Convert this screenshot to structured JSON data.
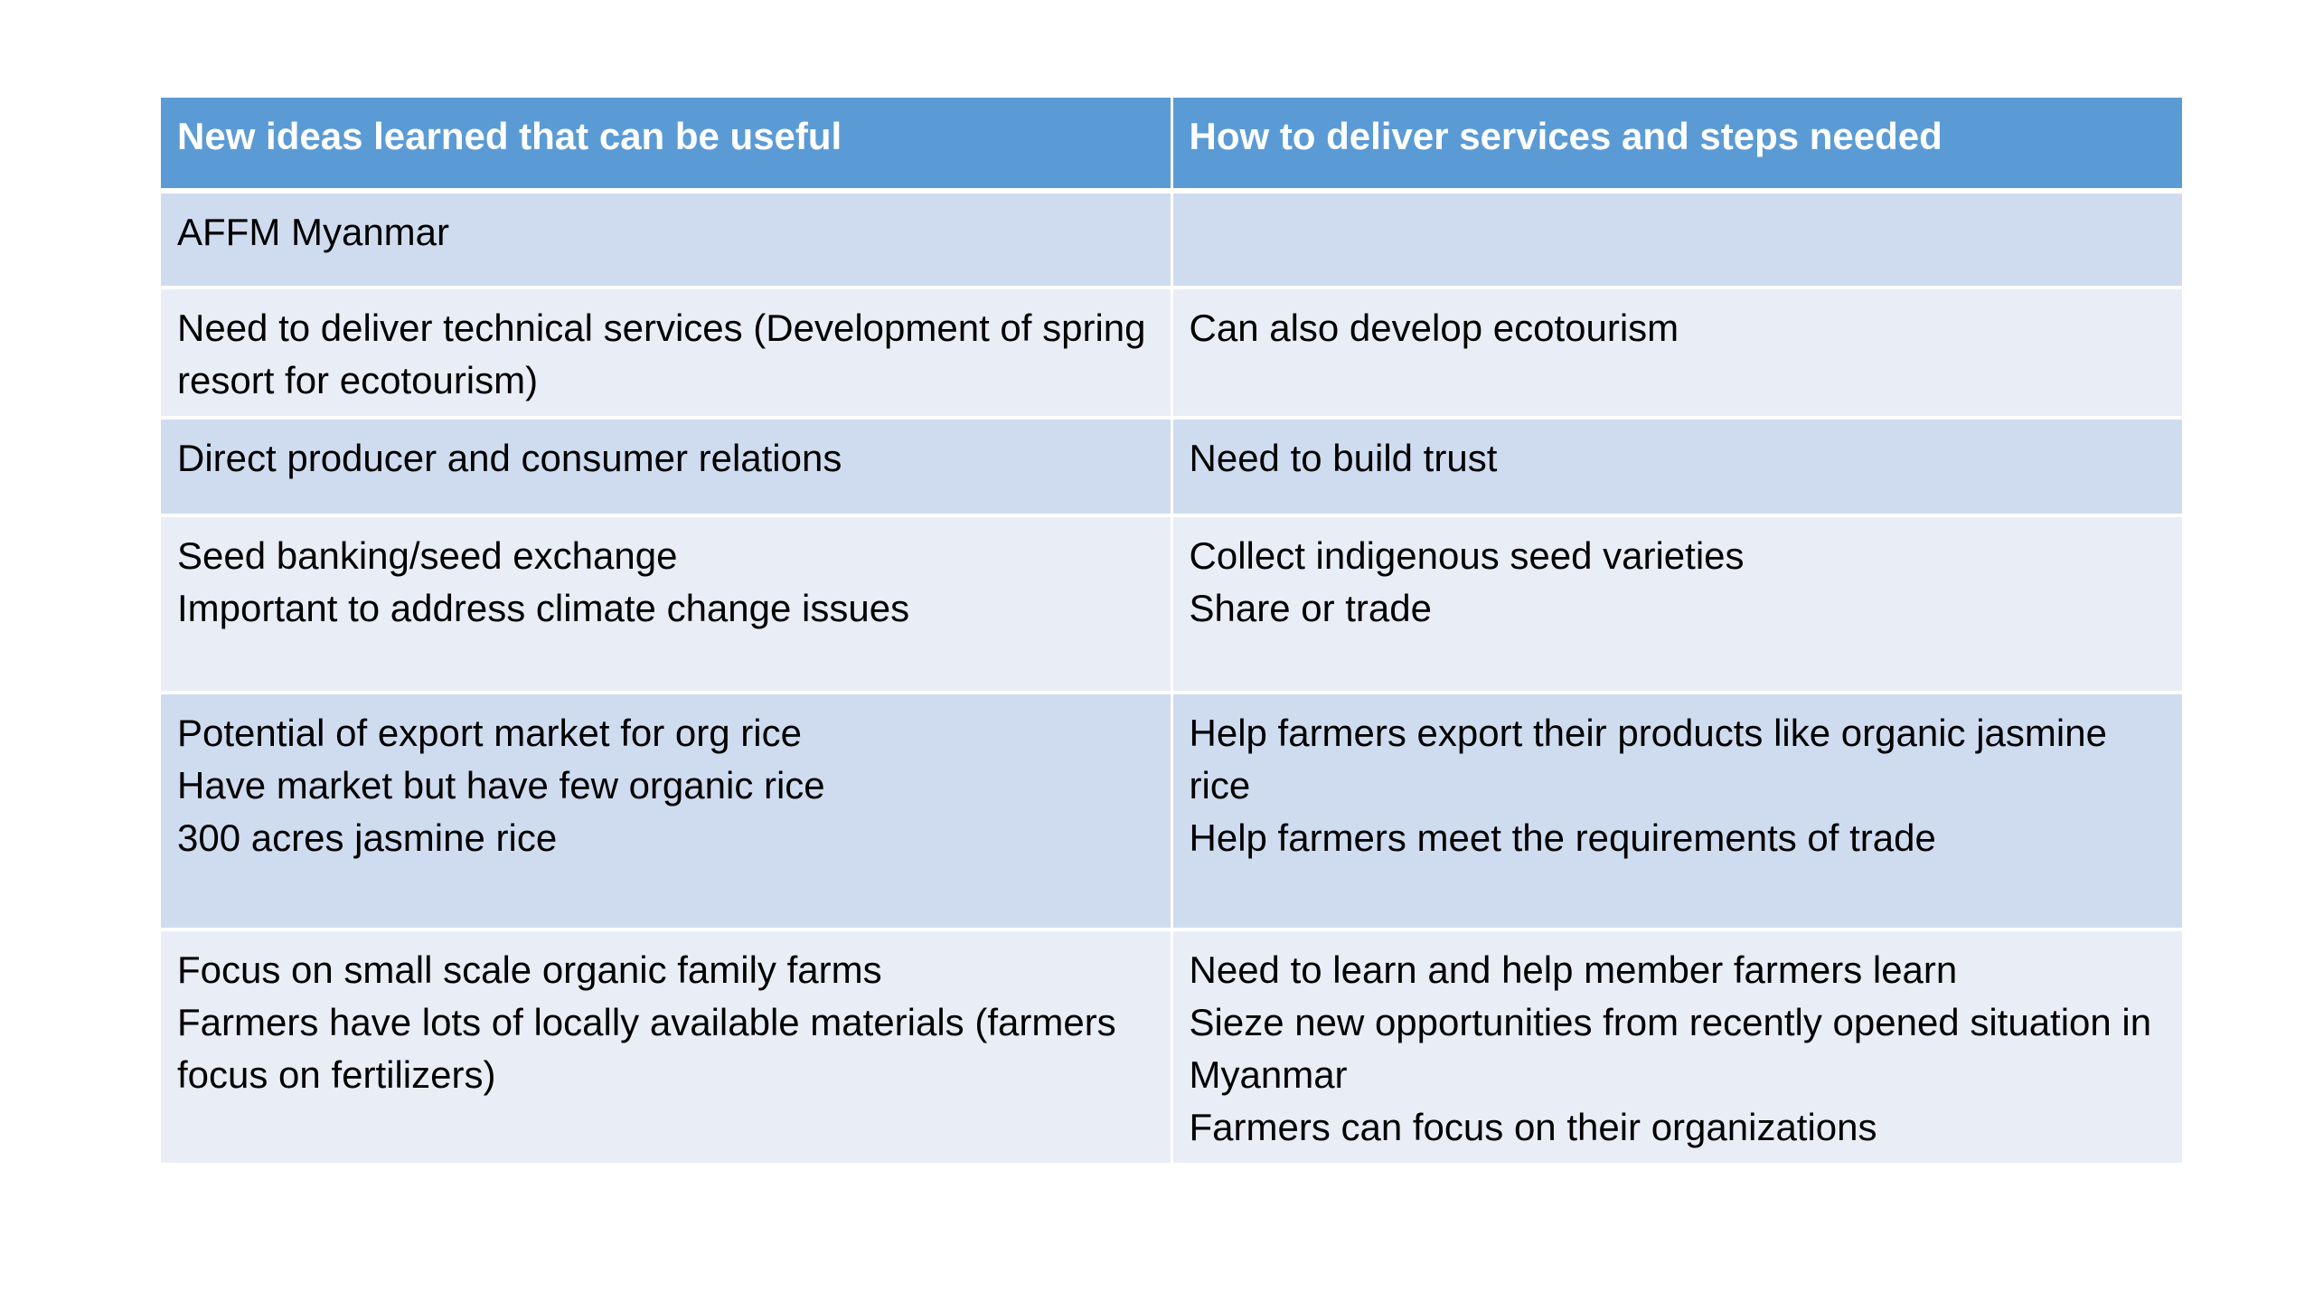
{
  "table": {
    "headers": [
      "New ideas learned that can be useful",
      "How to deliver services and steps needed"
    ],
    "rows": [
      {
        "left": [
          "AFFM Myanmar"
        ],
        "right": []
      },
      {
        "left": [
          "Need to deliver technical services (Development of spring resort for ecotourism)"
        ],
        "right": [
          "Can also develop ecotourism"
        ]
      },
      {
        "left": [
          "Direct producer and consumer relations"
        ],
        "right": [
          "Need to build trust"
        ]
      },
      {
        "left": [
          "Seed banking/seed exchange",
          "Important to address climate change issues"
        ],
        "right": [
          "Collect indigenous seed varieties",
          "Share or trade"
        ]
      },
      {
        "left": [
          "Potential of export market for org rice",
          "Have market but have few organic rice",
          "300 acres jasmine rice"
        ],
        "right": [
          "Help farmers export their products like organic jasmine rice",
          "Help farmers meet the requirements of trade"
        ]
      },
      {
        "left": [
          "Focus on small scale organic family farms",
          "Farmers have lots of locally available materials (farmers focus on fertilizers)"
        ],
        "right": [
          "Need to learn and help member farmers learn",
          "Sieze new opportunities from recently opened situation in Myanmar",
          "Farmers can focus on their organizations"
        ]
      }
    ]
  },
  "colors": {
    "header_bg": "#5b9bd5",
    "row_odd_bg": "#cfdcef",
    "row_even_bg": "#e9edf6"
  }
}
